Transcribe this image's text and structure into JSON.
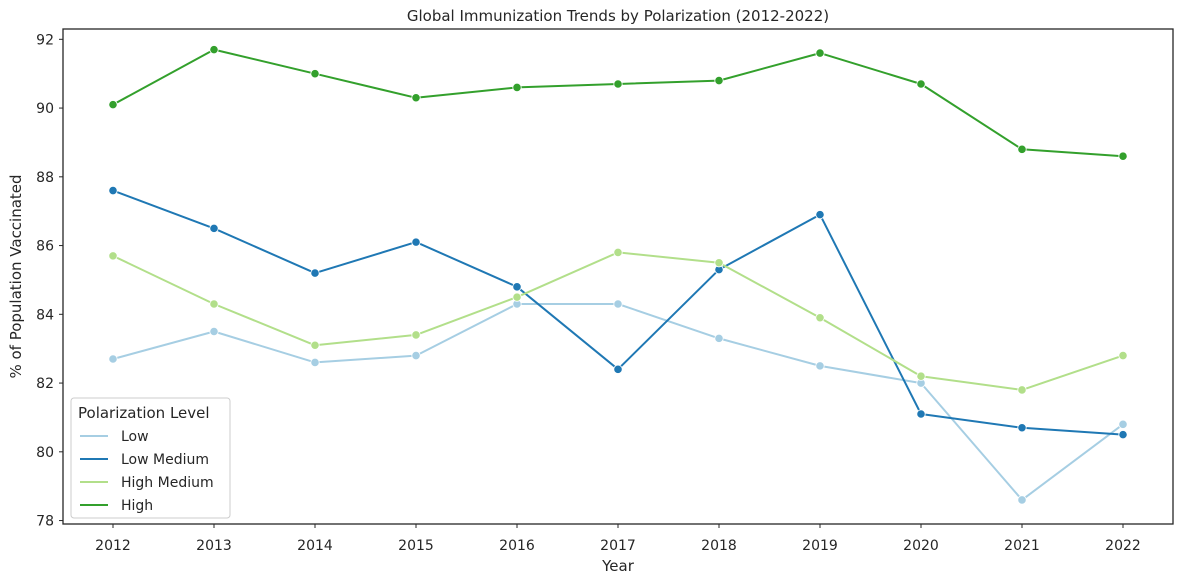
{
  "chart_data": {
    "type": "line",
    "title": "Global Immunization Trends by Polarization (2012-2022)",
    "xlabel": "Year",
    "ylabel": "% of Population Vaccinated",
    "x": [
      2012,
      2013,
      2014,
      2015,
      2016,
      2017,
      2018,
      2019,
      2020,
      2021,
      2022
    ],
    "ylim": [
      77.9,
      92.3
    ],
    "yticks": [
      78,
      80,
      82,
      84,
      86,
      88,
      90,
      92
    ],
    "grid": false,
    "legend": {
      "title": "Polarization Level",
      "placement": "lower-left"
    },
    "series": [
      {
        "name": "Low",
        "color": "#a6cee3",
        "values": [
          82.7,
          83.5,
          82.6,
          82.8,
          84.3,
          84.3,
          83.3,
          82.5,
          82.0,
          78.6,
          80.8
        ]
      },
      {
        "name": "Low Medium",
        "color": "#1f78b4",
        "values": [
          87.6,
          86.5,
          85.2,
          86.1,
          84.8,
          82.4,
          85.3,
          86.9,
          81.1,
          80.7,
          80.5
        ]
      },
      {
        "name": "High Medium",
        "color": "#b2df8a",
        "values": [
          85.7,
          84.3,
          83.1,
          83.4,
          84.5,
          85.8,
          85.5,
          83.9,
          82.2,
          81.8,
          82.8
        ]
      },
      {
        "name": "High",
        "color": "#33a02c",
        "values": [
          90.1,
          91.7,
          91.0,
          90.3,
          90.6,
          90.7,
          90.8,
          91.6,
          90.7,
          88.8,
          88.6
        ]
      }
    ]
  }
}
